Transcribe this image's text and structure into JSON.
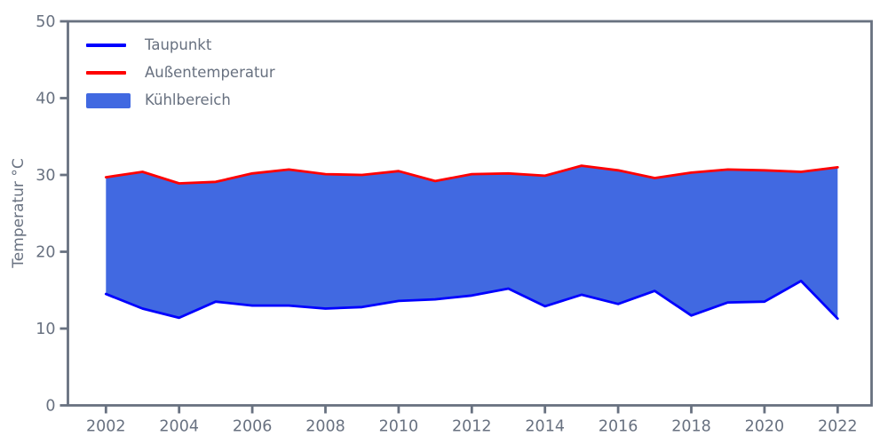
{
  "chart_data": {
    "type": "area",
    "title": "",
    "xlabel": "",
    "ylabel": "Temperatur °C",
    "ylim": [
      0,
      50
    ],
    "yticks": [
      0,
      10,
      20,
      30,
      40,
      50
    ],
    "xticks": [
      2002,
      2004,
      2006,
      2008,
      2010,
      2012,
      2014,
      2016,
      2018,
      2020,
      2022
    ],
    "grid": false,
    "legend_position": "upper-left",
    "axis_color": "#687180",
    "x": [
      2002,
      2003,
      2004,
      2005,
      2006,
      2007,
      2008,
      2009,
      2010,
      2011,
      2012,
      2013,
      2014,
      2015,
      2016,
      2017,
      2018,
      2019,
      2020,
      2021,
      2022
    ],
    "series": [
      {
        "name": "Taupunkt",
        "color": "#0000ff",
        "values": [
          14.5,
          12.6,
          11.4,
          13.5,
          13.0,
          13.0,
          12.6,
          12.8,
          13.6,
          13.8,
          14.3,
          15.2,
          12.9,
          14.4,
          13.2,
          14.9,
          11.7,
          13.4,
          13.5,
          16.2,
          11.3
        ]
      },
      {
        "name": "Außentemperatur",
        "color": "#ff0000",
        "values": [
          29.7,
          30.4,
          28.9,
          29.1,
          30.2,
          30.7,
          30.1,
          30.0,
          30.5,
          29.2,
          30.1,
          30.2,
          29.9,
          31.2,
          30.6,
          29.6,
          30.3,
          30.7,
          30.6,
          30.4,
          31.0
        ]
      }
    ],
    "fill": {
      "name": "Kühlbereich",
      "color": "#4169e1",
      "between": [
        "Taupunkt",
        "Außentemperatur"
      ]
    }
  }
}
